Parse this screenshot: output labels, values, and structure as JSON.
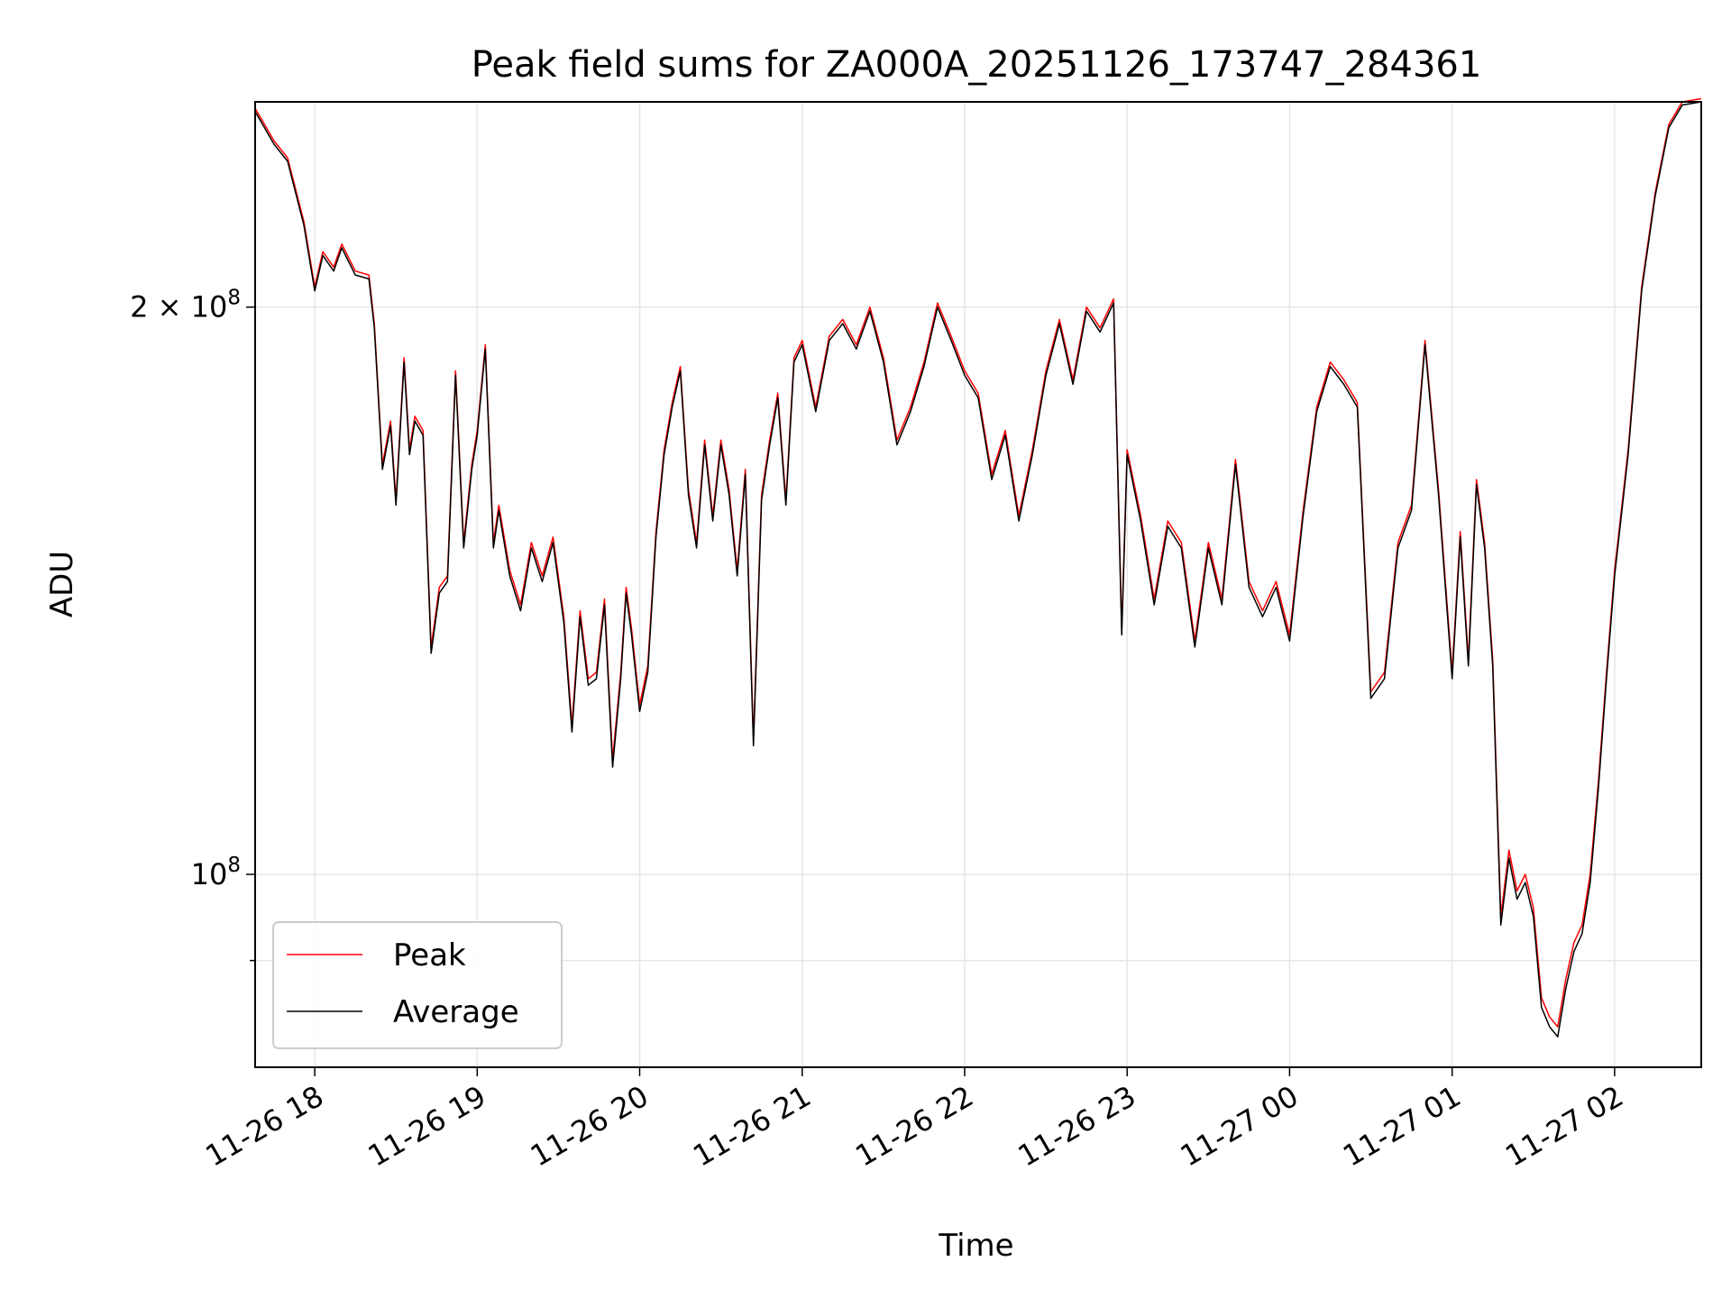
{
  "chart_data": {
    "type": "line",
    "title": "Peak field sums for ZA000A_20251126_173747_284361",
    "xlabel": "Time",
    "ylabel": "ADU",
    "yscale": "log",
    "ylim": [
      79000000,
      257000000
    ],
    "xlim": [
      "2025-11-26 17:38",
      "2025-11-27 02:32"
    ],
    "grid": true,
    "legend_position": "lower-left",
    "x_ticks": [
      {
        "t": "2025-11-26 18:00",
        "label": "11-26 18"
      },
      {
        "t": "2025-11-26 19:00",
        "label": "11-26 19"
      },
      {
        "t": "2025-11-26 20:00",
        "label": "11-26 20"
      },
      {
        "t": "2025-11-26 21:00",
        "label": "11-26 21"
      },
      {
        "t": "2025-11-26 22:00",
        "label": "11-26 22"
      },
      {
        "t": "2025-11-26 23:00",
        "label": "11-26 23"
      },
      {
        "t": "2025-11-27 00:00",
        "label": "11-27 00"
      },
      {
        "t": "2025-11-27 01:00",
        "label": "11-27 01"
      },
      {
        "t": "2025-11-27 02:00",
        "label": "11-27 02"
      }
    ],
    "y_ticks": [
      {
        "v": 100000000,
        "base": "10",
        "exp": "8",
        "mant": ""
      },
      {
        "v": 200000000,
        "base": "10",
        "exp": "8",
        "mant": "2 × "
      },
      {
        "v": 90000000,
        "minor": true
      }
    ],
    "series": [
      {
        "name": "Peak",
        "color": "#ff0000",
        "x": [
          "2025-11-26 17:38",
          "2025-11-26 17:45",
          "2025-11-26 17:50",
          "2025-11-26 17:56",
          "2025-11-26 18:00",
          "2025-11-26 18:03",
          "2025-11-26 18:07",
          "2025-11-26 18:10",
          "2025-11-26 18:15",
          "2025-11-26 18:20",
          "2025-11-26 18:22",
          "2025-11-26 18:25",
          "2025-11-26 18:28",
          "2025-11-26 18:30",
          "2025-11-26 18:33",
          "2025-11-26 18:35",
          "2025-11-26 18:37",
          "2025-11-26 18:40",
          "2025-11-26 18:43",
          "2025-11-26 18:46",
          "2025-11-26 18:49",
          "2025-11-26 18:52",
          "2025-11-26 18:55",
          "2025-11-26 18:58",
          "2025-11-26 19:00",
          "2025-11-26 19:03",
          "2025-11-26 19:06",
          "2025-11-26 19:08",
          "2025-11-26 19:12",
          "2025-11-26 19:16",
          "2025-11-26 19:20",
          "2025-11-26 19:24",
          "2025-11-26 19:28",
          "2025-11-26 19:32",
          "2025-11-26 19:35",
          "2025-11-26 19:38",
          "2025-11-26 19:41",
          "2025-11-26 19:44",
          "2025-11-26 19:47",
          "2025-11-26 19:50",
          "2025-11-26 19:53",
          "2025-11-26 19:55",
          "2025-11-26 19:57",
          "2025-11-26 20:00",
          "2025-11-26 20:03",
          "2025-11-26 20:06",
          "2025-11-26 20:09",
          "2025-11-26 20:12",
          "2025-11-26 20:15",
          "2025-11-26 20:18",
          "2025-11-26 20:21",
          "2025-11-26 20:24",
          "2025-11-26 20:27",
          "2025-11-26 20:30",
          "2025-11-26 20:33",
          "2025-11-26 20:36",
          "2025-11-26 20:39",
          "2025-11-26 20:42",
          "2025-11-26 20:45",
          "2025-11-26 20:48",
          "2025-11-26 20:51",
          "2025-11-26 20:54",
          "2025-11-26 20:57",
          "2025-11-26 21:00",
          "2025-11-26 21:05",
          "2025-11-26 21:10",
          "2025-11-26 21:15",
          "2025-11-26 21:20",
          "2025-11-26 21:25",
          "2025-11-26 21:30",
          "2025-11-26 21:35",
          "2025-11-26 21:40",
          "2025-11-26 21:45",
          "2025-11-26 21:50",
          "2025-11-26 21:55",
          "2025-11-26 22:00",
          "2025-11-26 22:05",
          "2025-11-26 22:10",
          "2025-11-26 22:15",
          "2025-11-26 22:20",
          "2025-11-26 22:25",
          "2025-11-26 22:30",
          "2025-11-26 22:35",
          "2025-11-26 22:40",
          "2025-11-26 22:45",
          "2025-11-26 22:50",
          "2025-11-26 22:55",
          "2025-11-26 22:58",
          "2025-11-26 23:00",
          "2025-11-26 23:05",
          "2025-11-26 23:10",
          "2025-11-26 23:15",
          "2025-11-26 23:20",
          "2025-11-26 23:25",
          "2025-11-26 23:30",
          "2025-11-26 23:35",
          "2025-11-26 23:40",
          "2025-11-26 23:45",
          "2025-11-26 23:50",
          "2025-11-26 23:55",
          "2025-11-27 00:00",
          "2025-11-27 00:05",
          "2025-11-27 00:10",
          "2025-11-27 00:15",
          "2025-11-27 00:20",
          "2025-11-27 00:25",
          "2025-11-27 00:30",
          "2025-11-27 00:35",
          "2025-11-27 00:40",
          "2025-11-27 00:45",
          "2025-11-27 00:50",
          "2025-11-27 00:55",
          "2025-11-27 01:00",
          "2025-11-27 01:03",
          "2025-11-27 01:06",
          "2025-11-27 01:09",
          "2025-11-27 01:12",
          "2025-11-27 01:15",
          "2025-11-27 01:18",
          "2025-11-27 01:21",
          "2025-11-27 01:24",
          "2025-11-27 01:27",
          "2025-11-27 01:30",
          "2025-11-27 01:33",
          "2025-11-27 01:36",
          "2025-11-27 01:39",
          "2025-11-27 01:42",
          "2025-11-27 01:45",
          "2025-11-27 01:48",
          "2025-11-27 01:51",
          "2025-11-27 01:54",
          "2025-11-27 01:57",
          "2025-11-27 02:00",
          "2025-11-27 02:05",
          "2025-11-27 02:10",
          "2025-11-27 02:15",
          "2025-11-27 02:20",
          "2025-11-27 02:25",
          "2025-11-27 02:32"
        ],
        "y": [
          255000000,
          245000000,
          240000000,
          222000000,
          205000000,
          214000000,
          210000000,
          216000000,
          209000000,
          208000000,
          196000000,
          165000000,
          174000000,
          158000000,
          188000000,
          168000000,
          175000000,
          172000000,
          132000000,
          142000000,
          144000000,
          185000000,
          150000000,
          165000000,
          172000000,
          191000000,
          150000000,
          157000000,
          145000000,
          139000000,
          150000000,
          144000000,
          151000000,
          137000000,
          120000000,
          138000000,
          127000000,
          128000000,
          140000000,
          115000000,
          128000000,
          142000000,
          135000000,
          123000000,
          129000000,
          152000000,
          168000000,
          178000000,
          186000000,
          160000000,
          150000000,
          170000000,
          155000000,
          170000000,
          160000000,
          145000000,
          164000000,
          118000000,
          159000000,
          170000000,
          180000000,
          158000000,
          188000000,
          192000000,
          177000000,
          193000000,
          197000000,
          191000000,
          200000000,
          188000000,
          170000000,
          177000000,
          187000000,
          201000000,
          193000000,
          185000000,
          180000000,
          163000000,
          172000000,
          155000000,
          168000000,
          185000000,
          197000000,
          183000000,
          200000000,
          195000000,
          202000000,
          135000000,
          168000000,
          155000000,
          140000000,
          154000000,
          150000000,
          133000000,
          150000000,
          140000000,
          166000000,
          143000000,
          138000000,
          143000000,
          134000000,
          156000000,
          177000000,
          187000000,
          183000000,
          178000000,
          125000000,
          128000000,
          150000000,
          157000000,
          192000000,
          160000000,
          128000000,
          152000000,
          130000000,
          162000000,
          150000000,
          130000000,
          95000000,
          103000000,
          98000000,
          100000000,
          96000000,
          86000000,
          84000000,
          83000000,
          88000000,
          92000000,
          94000000,
          100000000,
          112000000,
          128000000,
          145000000,
          168000000,
          205000000,
          230000000,
          250000000,
          257000000,
          258000000
        ]
      },
      {
        "name": "Average",
        "color": "#000000",
        "x": [
          "2025-11-26 17:38",
          "2025-11-26 17:45",
          "2025-11-26 17:50",
          "2025-11-26 17:56",
          "2025-11-26 18:00",
          "2025-11-26 18:03",
          "2025-11-26 18:07",
          "2025-11-26 18:10",
          "2025-11-26 18:15",
          "2025-11-26 18:20",
          "2025-11-26 18:22",
          "2025-11-26 18:25",
          "2025-11-26 18:28",
          "2025-11-26 18:30",
          "2025-11-26 18:33",
          "2025-11-26 18:35",
          "2025-11-26 18:37",
          "2025-11-26 18:40",
          "2025-11-26 18:43",
          "2025-11-26 18:46",
          "2025-11-26 18:49",
          "2025-11-26 18:52",
          "2025-11-26 18:55",
          "2025-11-26 18:58",
          "2025-11-26 19:00",
          "2025-11-26 19:03",
          "2025-11-26 19:06",
          "2025-11-26 19:08",
          "2025-11-26 19:12",
          "2025-11-26 19:16",
          "2025-11-26 19:20",
          "2025-11-26 19:24",
          "2025-11-26 19:28",
          "2025-11-26 19:32",
          "2025-11-26 19:35",
          "2025-11-26 19:38",
          "2025-11-26 19:41",
          "2025-11-26 19:44",
          "2025-11-26 19:47",
          "2025-11-26 19:50",
          "2025-11-26 19:53",
          "2025-11-26 19:55",
          "2025-11-26 19:57",
          "2025-11-26 20:00",
          "2025-11-26 20:03",
          "2025-11-26 20:06",
          "2025-11-26 20:09",
          "2025-11-26 20:12",
          "2025-11-26 20:15",
          "2025-11-26 20:18",
          "2025-11-26 20:21",
          "2025-11-26 20:24",
          "2025-11-26 20:27",
          "2025-11-26 20:30",
          "2025-11-26 20:33",
          "2025-11-26 20:36",
          "2025-11-26 20:39",
          "2025-11-26 20:42",
          "2025-11-26 20:45",
          "2025-11-26 20:48",
          "2025-11-26 20:51",
          "2025-11-26 20:54",
          "2025-11-26 20:57",
          "2025-11-26 21:00",
          "2025-11-26 21:05",
          "2025-11-26 21:10",
          "2025-11-26 21:15",
          "2025-11-26 21:20",
          "2025-11-26 21:25",
          "2025-11-26 21:30",
          "2025-11-26 21:35",
          "2025-11-26 21:40",
          "2025-11-26 21:45",
          "2025-11-26 21:50",
          "2025-11-26 21:55",
          "2025-11-26 22:00",
          "2025-11-26 22:05",
          "2025-11-26 22:10",
          "2025-11-26 22:15",
          "2025-11-26 22:20",
          "2025-11-26 22:25",
          "2025-11-26 22:30",
          "2025-11-26 22:35",
          "2025-11-26 22:40",
          "2025-11-26 22:45",
          "2025-11-26 22:50",
          "2025-11-26 22:55",
          "2025-11-26 22:58",
          "2025-11-26 23:00",
          "2025-11-26 23:05",
          "2025-11-26 23:10",
          "2025-11-26 23:15",
          "2025-11-26 23:20",
          "2025-11-26 23:25",
          "2025-11-26 23:30",
          "2025-11-26 23:35",
          "2025-11-26 23:40",
          "2025-11-26 23:45",
          "2025-11-26 23:50",
          "2025-11-26 23:55",
          "2025-11-27 00:00",
          "2025-11-27 00:05",
          "2025-11-27 00:10",
          "2025-11-27 00:15",
          "2025-11-27 00:20",
          "2025-11-27 00:25",
          "2025-11-27 00:30",
          "2025-11-27 00:35",
          "2025-11-27 00:40",
          "2025-11-27 00:45",
          "2025-11-27 00:50",
          "2025-11-27 00:55",
          "2025-11-27 01:00",
          "2025-11-27 01:03",
          "2025-11-27 01:06",
          "2025-11-27 01:09",
          "2025-11-27 01:12",
          "2025-11-27 01:15",
          "2025-11-27 01:18",
          "2025-11-27 01:21",
          "2025-11-27 01:24",
          "2025-11-27 01:27",
          "2025-11-27 01:30",
          "2025-11-27 01:33",
          "2025-11-27 01:36",
          "2025-11-27 01:39",
          "2025-11-27 01:42",
          "2025-11-27 01:45",
          "2025-11-27 01:48",
          "2025-11-27 01:51",
          "2025-11-27 01:54",
          "2025-11-27 01:57",
          "2025-11-27 02:00",
          "2025-11-27 02:05",
          "2025-11-27 02:10",
          "2025-11-27 02:15",
          "2025-11-27 02:20",
          "2025-11-27 02:25",
          "2025-11-27 02:32"
        ],
        "y": [
          254000000,
          244000000,
          239000000,
          221000000,
          204000000,
          213000000,
          209000000,
          215000000,
          208000000,
          207000000,
          195000000,
          164000000,
          173000000,
          157000000,
          187000000,
          167000000,
          174000000,
          171000000,
          131000000,
          141000000,
          143000000,
          184000000,
          149000000,
          164000000,
          171000000,
          190000000,
          149000000,
          156000000,
          144000000,
          138000000,
          149000000,
          143000000,
          150000000,
          136000000,
          119000000,
          137000000,
          126000000,
          127000000,
          139000000,
          114000000,
          127000000,
          141000000,
          134000000,
          122000000,
          128000000,
          151000000,
          167000000,
          177000000,
          185000000,
          159000000,
          149000000,
          169000000,
          154000000,
          169000000,
          159000000,
          144000000,
          163000000,
          117000000,
          158000000,
          169000000,
          179000000,
          157000000,
          187000000,
          191000000,
          176000000,
          192000000,
          196000000,
          190000000,
          199000000,
          187000000,
          169000000,
          176000000,
          186000000,
          200000000,
          192000000,
          184000000,
          179000000,
          162000000,
          171000000,
          154000000,
          167000000,
          184000000,
          196000000,
          182000000,
          199000000,
          194000000,
          201000000,
          134000000,
          167000000,
          154000000,
          139000000,
          153000000,
          149000000,
          132000000,
          149000000,
          139000000,
          165000000,
          142000000,
          137000000,
          142000000,
          133000000,
          155000000,
          176000000,
          186000000,
          182000000,
          177000000,
          124000000,
          127000000,
          149000000,
          156000000,
          191000000,
          159000000,
          127000000,
          151000000,
          129000000,
          161000000,
          149000000,
          129000000,
          94000000,
          102000000,
          97000000,
          99000000,
          95000000,
          85000000,
          83000000,
          82000000,
          87000000,
          91000000,
          93000000,
          99000000,
          111000000,
          127000000,
          144000000,
          167000000,
          204000000,
          229000000,
          249000000,
          256000000,
          257000000
        ]
      }
    ]
  }
}
